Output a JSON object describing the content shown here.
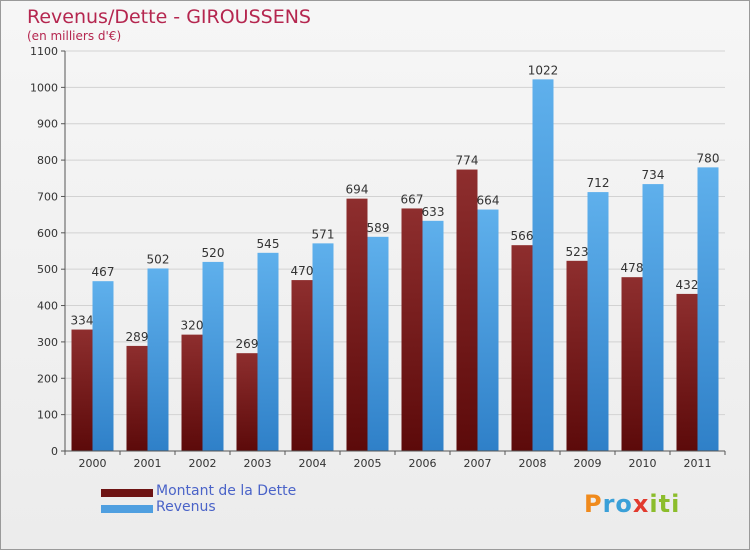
{
  "header": {
    "title": "Revenus/Dette - GIROUSSENS",
    "subtitle": "(en milliers d'€)"
  },
  "legend": {
    "items": [
      {
        "label": "Montant de la Dette",
        "color": "#6e1414"
      },
      {
        "label": "Revenus",
        "color": "#4f9fe0"
      }
    ]
  },
  "logo": {
    "text": "Proxiti"
  },
  "chart_data": {
    "type": "bar",
    "title": "Revenus/Dette - GIROUSSENS",
    "subtitle": "(en milliers d'€)",
    "xlabel": "",
    "ylabel": "",
    "ylim": [
      0,
      1100
    ],
    "yticks": [
      0,
      100,
      200,
      300,
      400,
      500,
      600,
      700,
      800,
      900,
      1000,
      1100
    ],
    "grid": true,
    "legend_position": "bottom-left",
    "categories": [
      "2000",
      "2001",
      "2002",
      "2003",
      "2004",
      "2005",
      "2006",
      "2007",
      "2008",
      "2009",
      "2010",
      "2011"
    ],
    "series": [
      {
        "name": "Montant de la Dette",
        "color": "#6e1414",
        "values": [
          334,
          289,
          320,
          269,
          470,
          694,
          667,
          774,
          566,
          523,
          478,
          432
        ]
      },
      {
        "name": "Revenus",
        "color": "#4f9fe0",
        "values": [
          467,
          502,
          520,
          545,
          571,
          589,
          633,
          664,
          1022,
          712,
          734,
          780
        ]
      }
    ]
  }
}
